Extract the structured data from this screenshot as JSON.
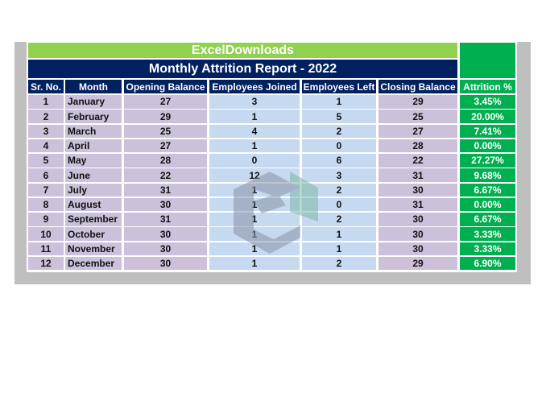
{
  "banner": "ExcelDownloads",
  "title": "Monthly Attrition Report - 2022",
  "headers": [
    "Sr. No.",
    "Month",
    "Opening Balance",
    "Employees Joined",
    "Employees Left",
    "Closing Balance",
    "Attrition %"
  ],
  "rows": [
    [
      "1",
      "January",
      "27",
      "3",
      "1",
      "29",
      "3.45%"
    ],
    [
      "2",
      "February",
      "29",
      "1",
      "5",
      "25",
      "20.00%"
    ],
    [
      "3",
      "March",
      "25",
      "4",
      "2",
      "27",
      "7.41%"
    ],
    [
      "4",
      "April",
      "27",
      "1",
      "0",
      "28",
      "0.00%"
    ],
    [
      "5",
      "May",
      "28",
      "0",
      "6",
      "22",
      "27.27%"
    ],
    [
      "6",
      "June",
      "22",
      "12",
      "3",
      "31",
      "9.68%"
    ],
    [
      "7",
      "July",
      "31",
      "1",
      "2",
      "30",
      "6.67%"
    ],
    [
      "8",
      "August",
      "30",
      "1",
      "0",
      "31",
      "0.00%"
    ],
    [
      "9",
      "September",
      "31",
      "1",
      "2",
      "30",
      "6.67%"
    ],
    [
      "10",
      "October",
      "30",
      "1",
      "1",
      "30",
      "3.33%"
    ],
    [
      "11",
      "November",
      "30",
      "1",
      "1",
      "30",
      "3.33%"
    ],
    [
      "12",
      "December",
      "30",
      "1",
      "2",
      "29",
      "6.90%"
    ]
  ],
  "colors": {
    "banner": "#92d050",
    "title": "#002060",
    "attrition": "#00b050",
    "purple": "#ccc0da",
    "blue": "#c5d9f1"
  }
}
